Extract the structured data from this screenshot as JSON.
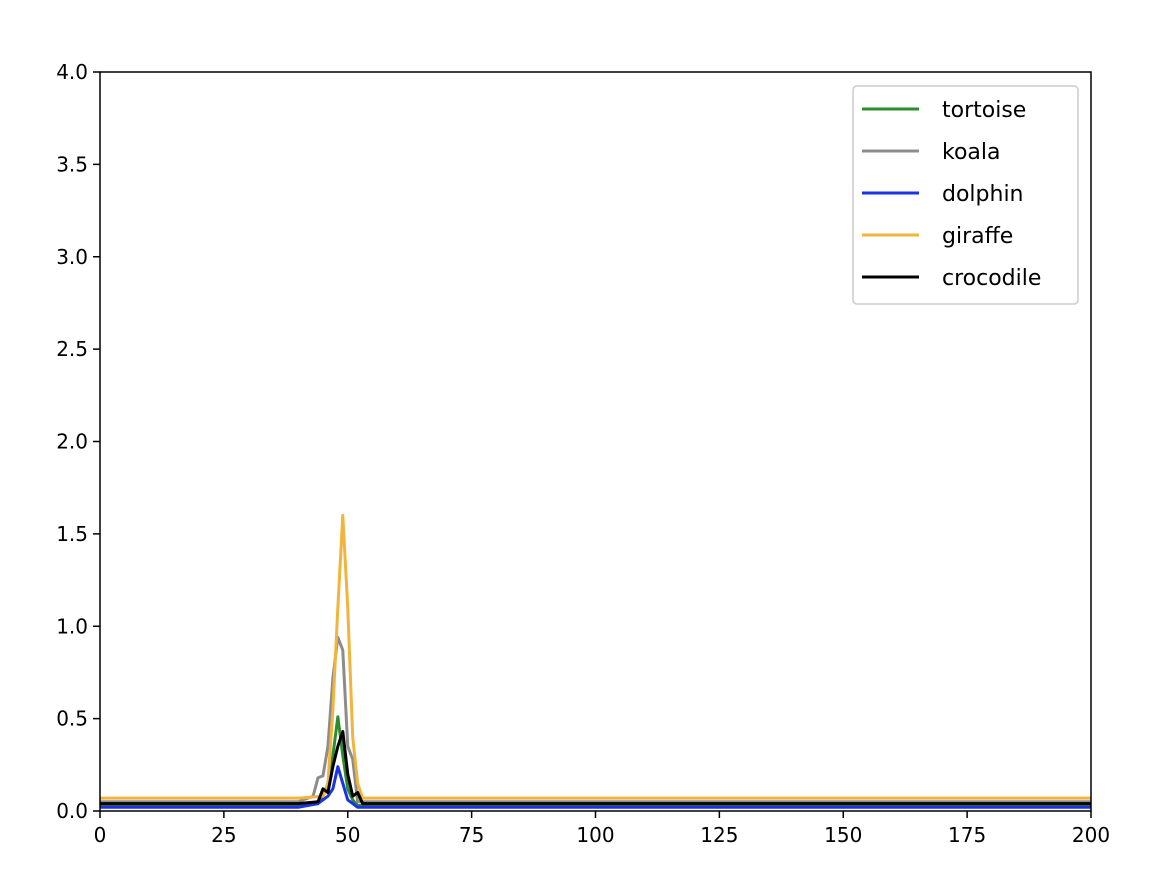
{
  "chart_data": {
    "type": "line",
    "title": "",
    "xlabel": "",
    "ylabel": "",
    "xlim": [
      0,
      200
    ],
    "ylim": [
      0,
      4.0
    ],
    "xticks": [
      "0",
      "25",
      "50",
      "75",
      "100",
      "125",
      "150",
      "175",
      "200"
    ],
    "yticks": [
      "0.0",
      "0.5",
      "1.0",
      "1.5",
      "2.0",
      "2.5",
      "3.0",
      "3.5",
      "4.0"
    ],
    "grid": false,
    "legend_position": "top-right",
    "series": [
      {
        "name": "tortoise",
        "color": "#2e8b2e",
        "points": [
          [
            0,
            0.03
          ],
          [
            10,
            0.03
          ],
          [
            20,
            0.03
          ],
          [
            30,
            0.03
          ],
          [
            40,
            0.03
          ],
          [
            44,
            0.04
          ],
          [
            45,
            0.08
          ],
          [
            46,
            0.15
          ],
          [
            47,
            0.3
          ],
          [
            48,
            0.51
          ],
          [
            49,
            0.3
          ],
          [
            50,
            0.12
          ],
          [
            51,
            0.06
          ],
          [
            52,
            0.03
          ],
          [
            60,
            0.03
          ],
          [
            80,
            0.03
          ],
          [
            100,
            0.03
          ],
          [
            120,
            0.03
          ],
          [
            140,
            0.03
          ],
          [
            160,
            0.03
          ],
          [
            180,
            0.03
          ],
          [
            200,
            0.03
          ]
        ]
      },
      {
        "name": "koala",
        "color": "#8c8c8c",
        "points": [
          [
            0,
            0.05
          ],
          [
            10,
            0.05
          ],
          [
            20,
            0.05
          ],
          [
            30,
            0.05
          ],
          [
            40,
            0.05
          ],
          [
            43,
            0.08
          ],
          [
            44,
            0.18
          ],
          [
            45,
            0.19
          ],
          [
            46,
            0.35
          ],
          [
            47,
            0.72
          ],
          [
            48,
            0.94
          ],
          [
            49,
            0.87
          ],
          [
            50,
            0.35
          ],
          [
            51,
            0.28
          ],
          [
            52,
            0.05
          ],
          [
            60,
            0.05
          ],
          [
            80,
            0.05
          ],
          [
            100,
            0.05
          ],
          [
            120,
            0.05
          ],
          [
            140,
            0.05
          ],
          [
            160,
            0.05
          ],
          [
            180,
            0.05
          ],
          [
            200,
            0.05
          ]
        ]
      },
      {
        "name": "dolphin",
        "color": "#1a33e6",
        "points": [
          [
            0,
            0.02
          ],
          [
            10,
            0.02
          ],
          [
            20,
            0.02
          ],
          [
            30,
            0.02
          ],
          [
            40,
            0.02
          ],
          [
            44,
            0.04
          ],
          [
            46,
            0.08
          ],
          [
            47,
            0.12
          ],
          [
            48,
            0.24
          ],
          [
            49,
            0.15
          ],
          [
            50,
            0.06
          ],
          [
            51,
            0.04
          ],
          [
            52,
            0.02
          ],
          [
            60,
            0.02
          ],
          [
            80,
            0.02
          ],
          [
            100,
            0.02
          ],
          [
            120,
            0.02
          ],
          [
            140,
            0.02
          ],
          [
            160,
            0.02
          ],
          [
            180,
            0.02
          ],
          [
            200,
            0.02
          ]
        ]
      },
      {
        "name": "giraffe",
        "color": "#f2b43c",
        "points": [
          [
            0,
            0.07
          ],
          [
            10,
            0.07
          ],
          [
            20,
            0.07
          ],
          [
            30,
            0.07
          ],
          [
            40,
            0.07
          ],
          [
            45,
            0.08
          ],
          [
            46,
            0.15
          ],
          [
            47,
            0.55
          ],
          [
            48,
            1.1
          ],
          [
            49,
            1.6
          ],
          [
            50,
            1.1
          ],
          [
            51,
            0.4
          ],
          [
            52,
            0.15
          ],
          [
            53,
            0.07
          ],
          [
            60,
            0.07
          ],
          [
            80,
            0.07
          ],
          [
            100,
            0.07
          ],
          [
            120,
            0.07
          ],
          [
            140,
            0.07
          ],
          [
            160,
            0.07
          ],
          [
            180,
            0.07
          ],
          [
            200,
            0.07
          ]
        ]
      },
      {
        "name": "crocodile",
        "color": "#000000",
        "points": [
          [
            0,
            0.04
          ],
          [
            10,
            0.04
          ],
          [
            20,
            0.04
          ],
          [
            30,
            0.04
          ],
          [
            40,
            0.04
          ],
          [
            44,
            0.05
          ],
          [
            45,
            0.12
          ],
          [
            46,
            0.1
          ],
          [
            47,
            0.24
          ],
          [
            48,
            0.35
          ],
          [
            49,
            0.43
          ],
          [
            50,
            0.2
          ],
          [
            51,
            0.08
          ],
          [
            52,
            0.1
          ],
          [
            53,
            0.04
          ],
          [
            60,
            0.04
          ],
          [
            80,
            0.04
          ],
          [
            100,
            0.04
          ],
          [
            120,
            0.04
          ],
          [
            140,
            0.04
          ],
          [
            160,
            0.04
          ],
          [
            180,
            0.04
          ],
          [
            200,
            0.04
          ]
        ]
      }
    ]
  }
}
